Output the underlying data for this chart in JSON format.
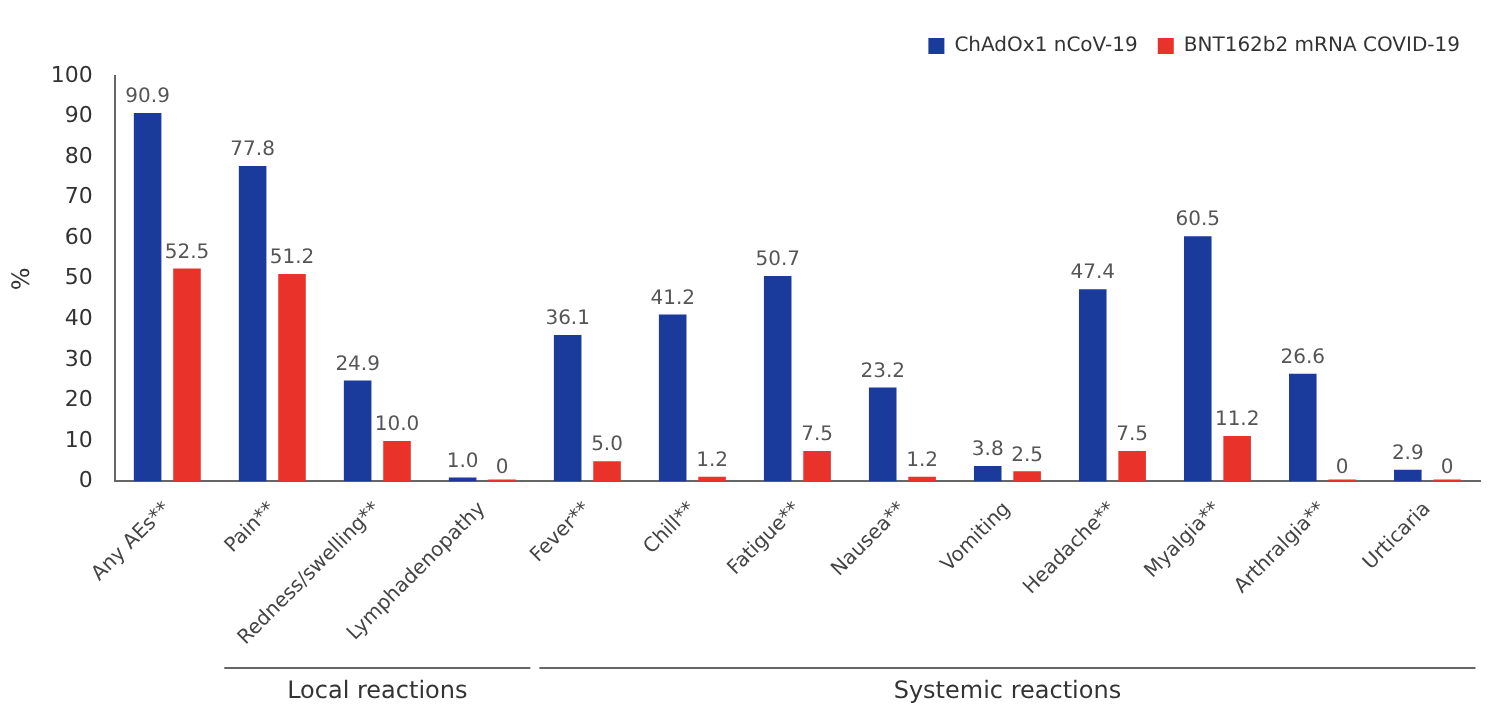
{
  "chart_data": {
    "type": "bar",
    "ylabel": "%",
    "categories": [
      "Any AEs**",
      "Pain**",
      "Redness/swelling**",
      "Lymphadenopathy",
      "Fever**",
      "Chill**",
      "Fatigue**",
      "Nausea**",
      "Vomiting",
      "Headache**",
      "Myalgia**",
      "Arthralgia**",
      "Urticaria"
    ],
    "series": [
      {
        "name": "ChAdOx1 nCoV-19",
        "color": "#1a3a9c",
        "values": [
          90.9,
          77.8,
          24.9,
          1.0,
          36.1,
          41.2,
          50.7,
          23.2,
          3.8,
          47.4,
          60.5,
          26.6,
          2.9
        ],
        "value_labels": [
          "90.9",
          "77.8",
          "24.9",
          "1.0",
          "36.1",
          "41.2",
          "50.7",
          "23.2",
          "3.8",
          "47.4",
          "60.5",
          "26.6",
          "2.9"
        ]
      },
      {
        "name": "BNT162b2 mRNA COVID-19",
        "color": "#e8322a",
        "values": [
          52.5,
          51.2,
          10.0,
          0,
          5.0,
          1.2,
          7.5,
          1.2,
          2.5,
          7.5,
          11.2,
          0,
          0
        ],
        "value_labels": [
          "52.5",
          "51.2",
          "10.0",
          "0",
          "5.0",
          "1.2",
          "7.5",
          "1.2",
          "2.5",
          "7.5",
          "11.2",
          "0",
          "0"
        ]
      }
    ],
    "ylim": [
      0,
      100
    ],
    "yticks": [
      0,
      10,
      20,
      30,
      40,
      50,
      60,
      70,
      80,
      90,
      100
    ],
    "grid": false,
    "legend": "top right",
    "annotations": [
      "Local reactions",
      "Systemic reactions"
    ]
  }
}
